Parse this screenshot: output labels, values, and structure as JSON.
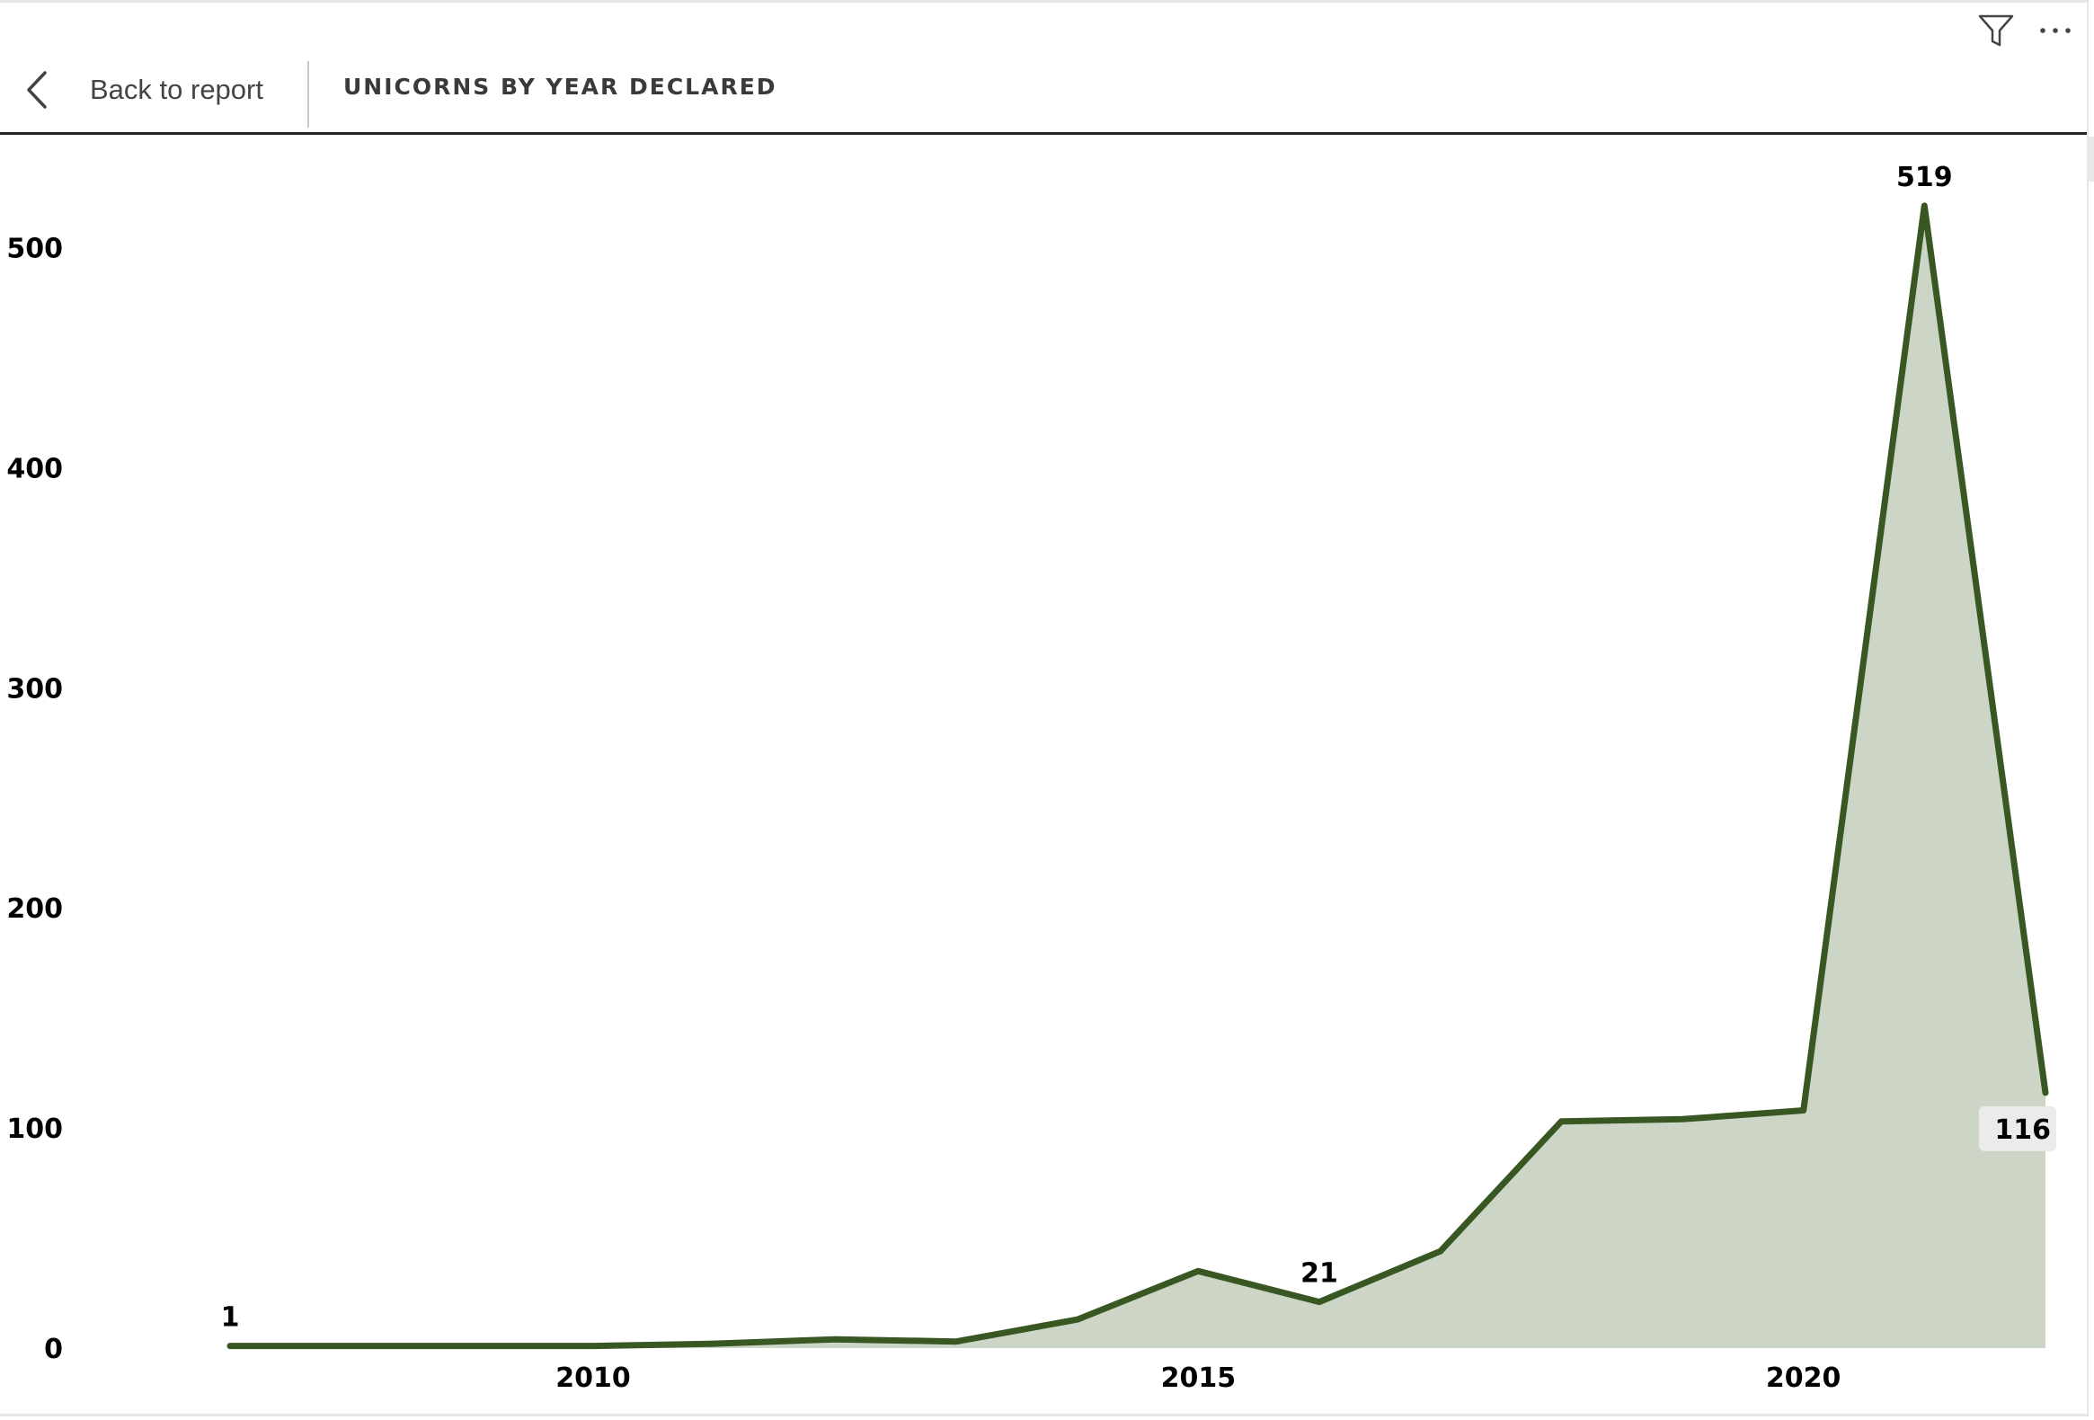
{
  "header": {
    "back_label": "Back to report",
    "title": "UNICORNS BY YEAR DECLARED",
    "icons": [
      "chevron-left-icon",
      "filter-icon",
      "more-options-icon"
    ]
  },
  "colors": {
    "line": "#385723",
    "area": "#cdd5c6",
    "label_bg": "#ebebeb",
    "axis_text": "#000000"
  },
  "chart_data": {
    "type": "area",
    "title": "UNICORNS BY YEAR DECLARED",
    "xlabel": "",
    "ylabel": "",
    "x": [
      2007,
      2008,
      2009,
      2010,
      2011,
      2012,
      2013,
      2014,
      2015,
      2016,
      2017,
      2018,
      2019,
      2020,
      2021,
      2022
    ],
    "values": [
      1,
      1,
      1,
      1,
      2,
      4,
      3,
      13,
      35,
      21,
      44,
      103,
      104,
      108,
      519,
      116
    ],
    "data_labels": [
      {
        "x": 2007,
        "text": "1"
      },
      {
        "x": 2016,
        "text": "21"
      },
      {
        "x": 2021,
        "text": "519"
      },
      {
        "x": 2022,
        "text": "116"
      }
    ],
    "xlim": [
      2007,
      2022
    ],
    "ylim": [
      0,
      530
    ],
    "xticks": [
      2010,
      2015,
      2020
    ],
    "yticks": [
      0,
      100,
      200,
      300,
      400,
      500
    ],
    "grid": false,
    "legend": "none"
  }
}
